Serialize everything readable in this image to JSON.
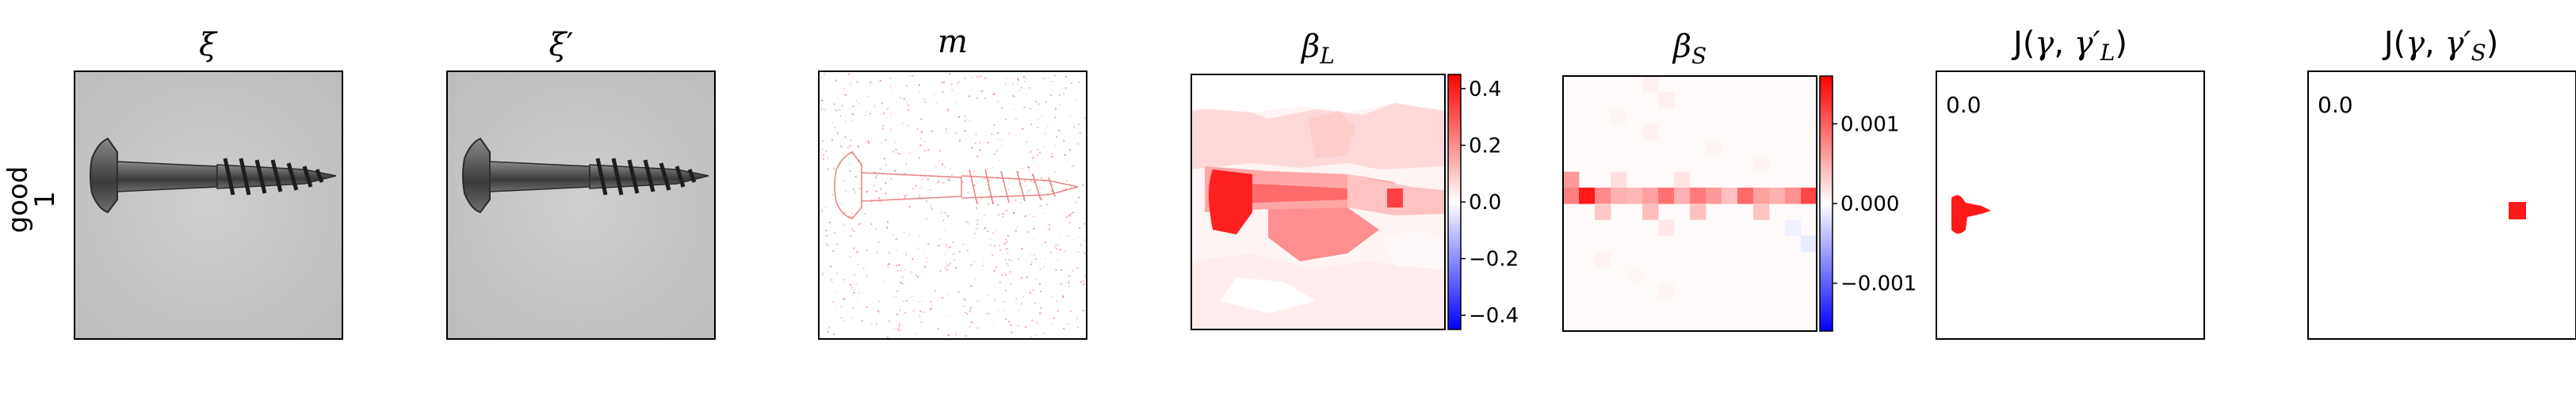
{
  "row": {
    "line1": "good",
    "line2": "1"
  },
  "panels": [
    {
      "key": "xi",
      "base": "ξ",
      "prime": true,
      "sub": ""
    },
    {
      "key": "xip",
      "base": "ξ",
      "prime": true,
      "sub": ""
    },
    {
      "key": "m",
      "base": "m",
      "prime": false,
      "sub": ""
    },
    {
      "key": "betaL",
      "base": "β",
      "prime": false,
      "sub": "L"
    },
    {
      "key": "betaS",
      "base": "β",
      "prime": false,
      "sub": "S"
    },
    {
      "key": "JL",
      "fn": "J",
      "arg1": "γ",
      "arg2": "γ′",
      "sub": "L"
    },
    {
      "key": "JS",
      "fn": "J",
      "arg1": "γ",
      "arg2": "γ′",
      "sub": "S"
    }
  ],
  "titles": {
    "xi": "ξ",
    "xip_base": "ξ",
    "xip_mark": "′",
    "m": "m",
    "betaL_base": "β",
    "betaL_sub": "L",
    "betaS_base": "β",
    "betaS_sub": "S",
    "JL_prefix": "J(",
    "JL_g": "γ",
    "JL_sep": ", ",
    "JL_gp": "γ′",
    "JL_sub": "L",
    "JL_close": ")",
    "JS_prefix": "J(",
    "JS_g": "γ",
    "JS_sep": ", ",
    "JS_gp": "γ′",
    "JS_sub": "S",
    "JS_close": ")"
  },
  "colorbars": {
    "betaL": {
      "ticks": [
        "0.4",
        "0.2",
        "0.0",
        "−0.2",
        "−0.4"
      ],
      "values": [
        0.4,
        0.2,
        0.0,
        -0.2,
        -0.4
      ],
      "range": [
        -0.45,
        0.45
      ]
    },
    "betaS": {
      "ticks": [
        "0.001",
        "0.000",
        "−0.001"
      ],
      "values": [
        0.001,
        0.0,
        -0.001
      ],
      "range": [
        -0.0016,
        0.0016
      ]
    }
  },
  "scores": {
    "JL": "0.0",
    "JS": "0.0"
  },
  "colors": {
    "positive": "#ff0000",
    "negative": "#0000ff",
    "neutral": "#ffffff",
    "image_bg": "#c9c9c9"
  }
}
